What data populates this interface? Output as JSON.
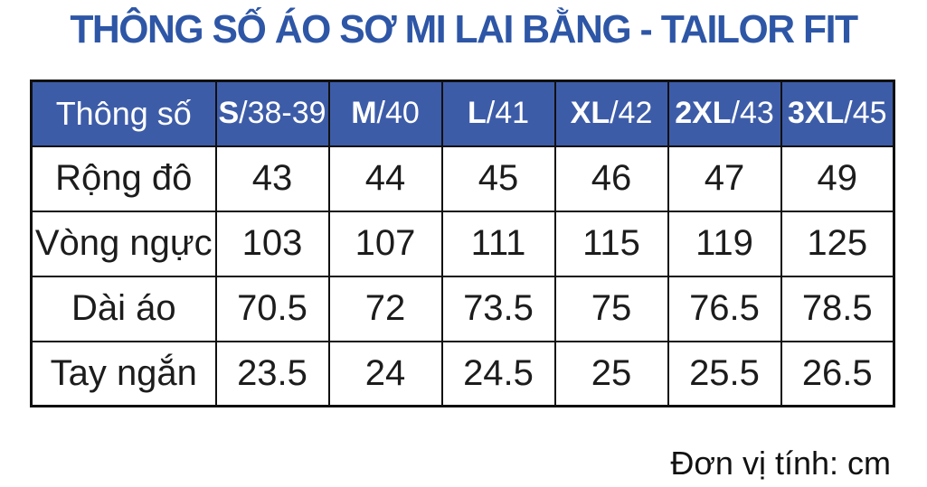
{
  "title": "THÔNG SỐ ÁO SƠ MI LAI BẰNG - TAILOR FIT",
  "unit_note": "Đơn vị tính: cm",
  "colors": {
    "title_blue": "#2e56a6",
    "header_blue": "#3d5ca8",
    "header_text": "#ffffff",
    "body_text": "#1c1c1c",
    "border": "#101010"
  },
  "chart_data": {
    "type": "table",
    "title": "THÔNG SỐ ÁO SƠ MI LAI BẰNG - TAILOR FIT",
    "unit": "cm",
    "columns": [
      "Thông số",
      "S/38-39",
      "M/40",
      "L/41",
      "XL/42",
      "2XL/43",
      "3XL/45"
    ],
    "columns_label": "Thông số",
    "size_headers": [
      {
        "size": "S",
        "detail": "/38-39"
      },
      {
        "size": "M",
        "detail": "/40"
      },
      {
        "size": "L",
        "detail": "/41"
      },
      {
        "size": "XL",
        "detail": "/42"
      },
      {
        "size": "2XL",
        "detail": "/43"
      },
      {
        "size": "3XL",
        "detail": "/45"
      }
    ],
    "rows": [
      {
        "label": "Rộng đô",
        "values": [
          43,
          44,
          45,
          46,
          47,
          49
        ]
      },
      {
        "label": "Vòng ngực",
        "values": [
          103,
          107,
          111,
          115,
          119,
          125
        ]
      },
      {
        "label": "Dài áo",
        "values": [
          70.5,
          72,
          73.5,
          75,
          76.5,
          78.5
        ]
      },
      {
        "label": "Tay ngắn",
        "values": [
          23.5,
          24,
          24.5,
          25,
          25.5,
          26.5
        ]
      }
    ]
  }
}
